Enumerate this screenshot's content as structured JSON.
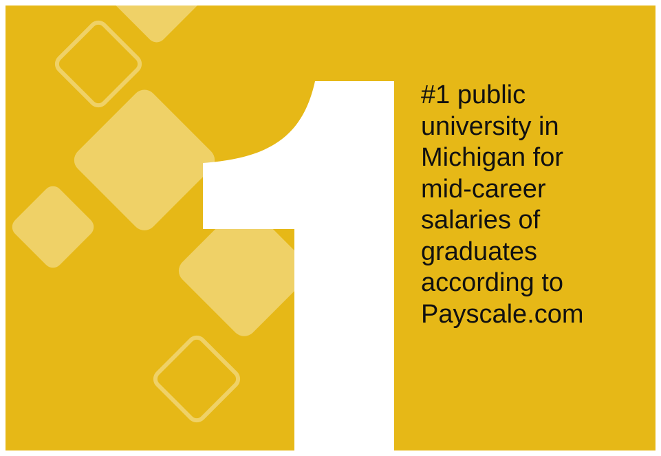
{
  "headline_lines": [
    "#1 public",
    "university in",
    "Michigan for",
    "mid-career",
    "salaries of",
    "graduates",
    "according to",
    "Payscale.com"
  ],
  "colors": {
    "background": "#E6B817",
    "diamond_fill": "#EFD470",
    "numeral": "#FFFFFF",
    "text": "#111111"
  },
  "icons": [
    "diamond-pattern",
    "numeral-one-graphic"
  ]
}
